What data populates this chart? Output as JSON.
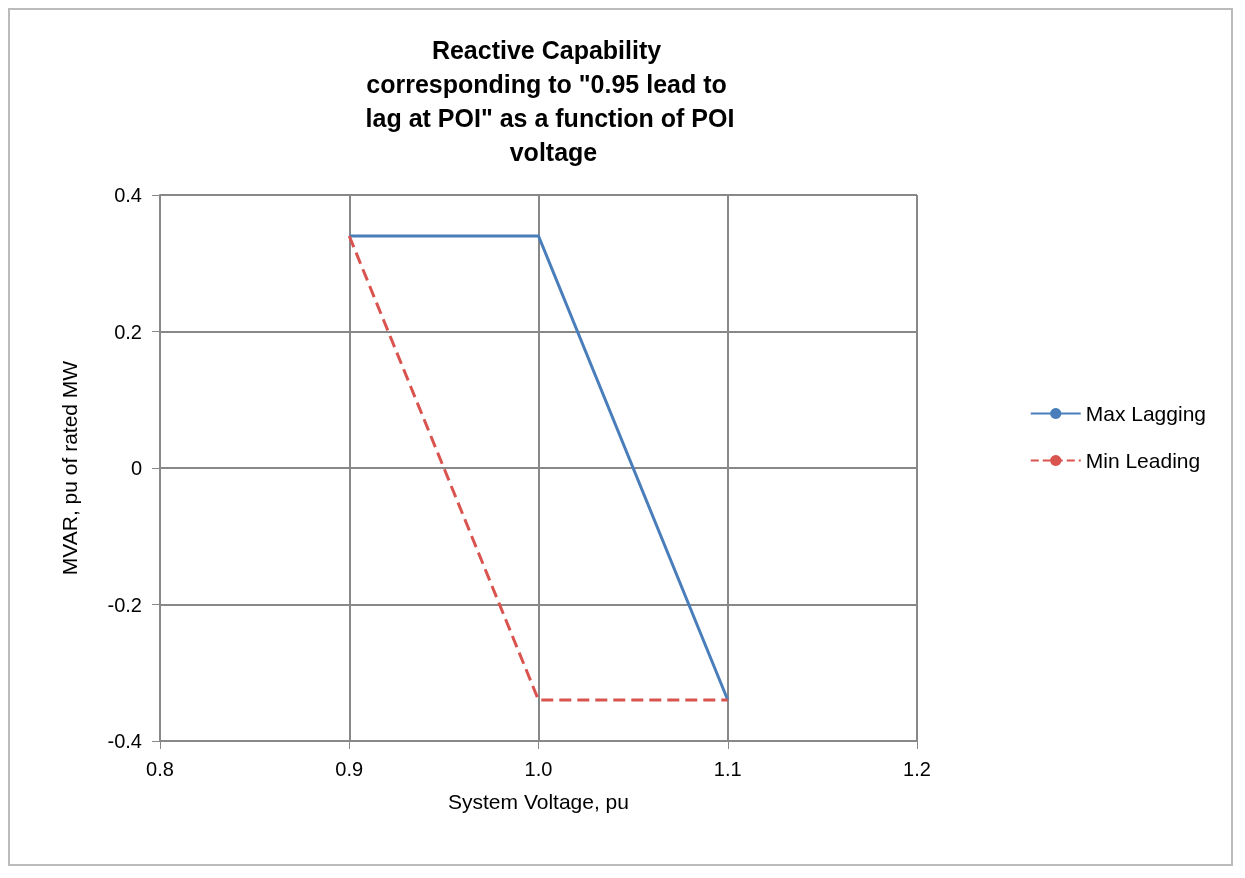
{
  "chart_data": {
    "type": "line",
    "title": "Reactive Capability corresponding to \"0.95 lead to lag at POI\" as a function of POI voltage",
    "xlabel": "System Voltage, pu",
    "ylabel": "MVAR, pu of rated MW",
    "xlim": [
      0.8,
      1.2
    ],
    "xticks": [
      {
        "value": 0.8,
        "label": "0.8"
      },
      {
        "value": 0.9,
        "label": "0.9"
      },
      {
        "value": 1.0,
        "label": "1.0"
      },
      {
        "value": 1.1,
        "label": "1.1"
      },
      {
        "value": 1.2,
        "label": "1.2"
      }
    ],
    "ylim": [
      -0.4,
      0.4
    ],
    "yticks": [
      -0.4,
      -0.2,
      0,
      0.2,
      0.4
    ],
    "grid": true,
    "legend": "right",
    "marker": "none",
    "series": [
      {
        "name": "Max Lagging",
        "color": "#4a7ebb",
        "line_style": "solid",
        "x": [
          0.9,
          1.0,
          1.1
        ],
        "values": [
          0.34,
          0.34,
          -0.34
        ]
      },
      {
        "name": "Min Leading",
        "color": "#d9534f",
        "line_style": "dashed",
        "x": [
          0.9,
          1.0,
          1.1
        ],
        "values": [
          0.34,
          -0.34,
          -0.34
        ]
      }
    ]
  }
}
